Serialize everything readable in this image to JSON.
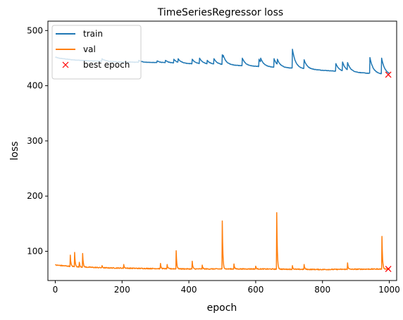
{
  "chart_data": {
    "type": "line",
    "title": "TimeSeriesRegressor loss",
    "xlabel": "epoch",
    "ylabel": "loss",
    "xlim": [
      -22,
      1022
    ],
    "ylim": [
      47,
      517
    ],
    "xticks": [
      0,
      200,
      400,
      600,
      800,
      1000
    ],
    "yticks": [
      100,
      200,
      300,
      400,
      500
    ],
    "legend_position": "top-left",
    "grid": false,
    "series": [
      {
        "name": "train",
        "color": "#1f77b4",
        "start": 452,
        "end": 420,
        "decay_points": [
          [
            0,
            452
          ],
          [
            10,
            450
          ],
          [
            50,
            447
          ],
          [
            100,
            445
          ],
          [
            200,
            443
          ],
          [
            300,
            442
          ],
          [
            400,
            440
          ],
          [
            500,
            438
          ],
          [
            600,
            435
          ],
          [
            700,
            432
          ],
          [
            800,
            428
          ],
          [
            900,
            424
          ],
          [
            1000,
            420
          ]
        ],
        "spikes": [
          [
            140,
            449
          ],
          [
            250,
            446
          ],
          [
            305,
            445
          ],
          [
            330,
            446
          ],
          [
            355,
            448
          ],
          [
            368,
            449
          ],
          [
            410,
            448
          ],
          [
            432,
            450
          ],
          [
            455,
            446
          ],
          [
            475,
            449
          ],
          [
            500,
            456
          ],
          [
            503,
            455
          ],
          [
            560,
            450
          ],
          [
            610,
            448
          ],
          [
            615,
            450
          ],
          [
            655,
            449
          ],
          [
            665,
            448
          ],
          [
            710,
            466
          ],
          [
            745,
            447
          ],
          [
            840,
            440
          ],
          [
            860,
            443
          ],
          [
            875,
            442
          ],
          [
            942,
            451
          ],
          [
            977,
            450
          ]
        ]
      },
      {
        "name": "val",
        "color": "#ff7f0e",
        "start": 75,
        "end": 68,
        "decay_points": [
          [
            0,
            75
          ],
          [
            20,
            74
          ],
          [
            60,
            72
          ],
          [
            150,
            70
          ],
          [
            250,
            69
          ],
          [
            400,
            68
          ],
          [
            600,
            68
          ],
          [
            800,
            67
          ],
          [
            1000,
            68
          ]
        ],
        "spikes": [
          [
            45,
            93
          ],
          [
            58,
            98
          ],
          [
            72,
            80
          ],
          [
            82,
            96
          ],
          [
            140,
            74
          ],
          [
            205,
            76
          ],
          [
            315,
            78
          ],
          [
            335,
            76
          ],
          [
            362,
            101
          ],
          [
            410,
            82
          ],
          [
            440,
            75
          ],
          [
            500,
            155
          ],
          [
            535,
            77
          ],
          [
            600,
            73
          ],
          [
            663,
            170
          ],
          [
            710,
            74
          ],
          [
            745,
            76
          ],
          [
            875,
            79
          ],
          [
            978,
            127
          ]
        ]
      }
    ],
    "best_epoch": {
      "name": "best epoch",
      "x": 997,
      "y": 420,
      "color": "#ff0000",
      "marker": "x"
    },
    "best_epoch_val": {
      "x": 997,
      "y": 68
    }
  }
}
